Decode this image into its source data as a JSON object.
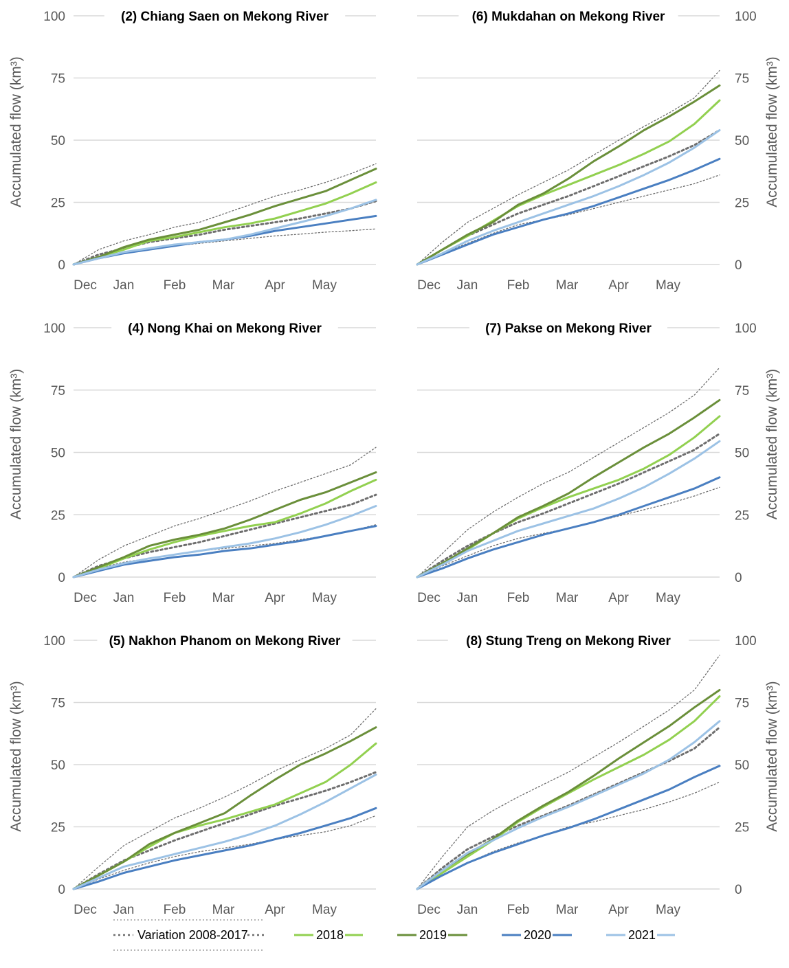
{
  "chart_data": [
    {
      "type": "line",
      "title": "(2) Chiang Saen on Mekong River",
      "ylabel": "Accumulated flow (km³)",
      "ylim": [
        0,
        100
      ],
      "yticks": [
        0,
        25,
        50,
        75,
        100
      ],
      "x_categories": [
        "Dec",
        "Jan",
        "Feb",
        "Mar",
        "Apr",
        "May"
      ],
      "x": [
        0,
        0.5,
        1,
        1.5,
        2,
        2.5,
        3,
        3.5,
        4,
        4.5,
        5,
        5.5,
        6
      ],
      "series": [
        {
          "name": "Variation 2008-2017",
          "role": "max",
          "values": [
            0,
            6,
            9.5,
            12,
            15,
            17,
            20.5,
            24,
            27.5,
            30,
            33,
            36.5,
            40.5
          ]
        },
        {
          "name": "Variation 2008-2017",
          "role": "mean",
          "values": [
            0,
            4,
            6.5,
            9,
            10.5,
            12,
            14,
            15.5,
            17,
            18.5,
            20.5,
            22.5,
            25.5
          ]
        },
        {
          "name": "Variation 2008-2017",
          "role": "min",
          "values": [
            0,
            3,
            5,
            6.5,
            7.5,
            8.5,
            9.5,
            10.5,
            11.5,
            12.2,
            13,
            13.6,
            14.3
          ]
        },
        {
          "name": "2018",
          "values": [
            0,
            3,
            6,
            9.5,
            11,
            13,
            15,
            16.5,
            18.5,
            21.5,
            24.5,
            28.5,
            33
          ]
        },
        {
          "name": "2019",
          "values": [
            0,
            3,
            7,
            10,
            12,
            14,
            17,
            20,
            23.5,
            26.5,
            29.5,
            34,
            38.5
          ]
        },
        {
          "name": "2020",
          "values": [
            0,
            2.5,
            4.5,
            6,
            7.5,
            9,
            10,
            11.5,
            13.5,
            15,
            16.5,
            18,
            19.5
          ]
        },
        {
          "name": "2021",
          "values": [
            0,
            2.5,
            5,
            6.5,
            8,
            9,
            10,
            12,
            14.5,
            17,
            19.5,
            22.5,
            26
          ]
        }
      ]
    },
    {
      "type": "line",
      "title": "(6) Mukdahan on Mekong River",
      "ylabel": "Accumulated flow (km³)",
      "ylim": [
        0,
        100
      ],
      "yticks": [
        0,
        25,
        50,
        75,
        100
      ],
      "x_categories": [
        "Dec",
        "Jan",
        "Feb",
        "Mar",
        "Apr",
        "May"
      ],
      "x": [
        0,
        0.5,
        1,
        1.5,
        2,
        2.5,
        3,
        3.5,
        4,
        4.5,
        5,
        5.5,
        6
      ],
      "series": [
        {
          "name": "Variation 2008-2017",
          "role": "max",
          "values": [
            0,
            9,
            17,
            22.5,
            28,
            33,
            38,
            44,
            50,
            55.5,
            61,
            67,
            78
          ]
        },
        {
          "name": "Variation 2008-2017",
          "role": "mean",
          "values": [
            0,
            6,
            11.5,
            16,
            20.5,
            24,
            27.5,
            31.5,
            35.5,
            39.5,
            43.5,
            48,
            54
          ]
        },
        {
          "name": "Variation 2008-2017",
          "role": "min",
          "values": [
            0,
            4.5,
            8.5,
            12.5,
            16,
            18,
            20,
            22.5,
            25,
            27.5,
            30,
            32.5,
            36
          ]
        },
        {
          "name": "2018",
          "values": [
            0,
            6,
            11.5,
            17.5,
            23.5,
            28,
            32,
            36,
            40,
            44.5,
            49.5,
            56.5,
            66
          ]
        },
        {
          "name": "2019",
          "values": [
            0,
            6,
            12,
            17,
            24,
            28.5,
            34.5,
            41.5,
            47.5,
            54,
            59.5,
            65.5,
            72
          ]
        },
        {
          "name": "2020",
          "values": [
            0,
            4,
            8,
            12,
            15,
            18,
            20.5,
            23.5,
            27,
            30.5,
            34,
            38,
            42.5
          ]
        },
        {
          "name": "2021",
          "values": [
            0,
            4.5,
            9.5,
            13.5,
            17,
            20.5,
            24,
            27.5,
            31.5,
            36,
            41,
            47,
            54
          ]
        }
      ]
    },
    {
      "type": "line",
      "title": "(4) Nong Khai on Mekong River",
      "ylabel": "Accumulated flow (km³)",
      "ylim": [
        0,
        100
      ],
      "yticks": [
        0,
        25,
        50,
        75,
        100
      ],
      "x_categories": [
        "Dec",
        "Jan",
        "Feb",
        "Mar",
        "Apr",
        "May"
      ],
      "x": [
        0,
        0.5,
        1,
        1.5,
        2,
        2.5,
        3,
        3.5,
        4,
        4.5,
        5,
        5.5,
        6
      ],
      "series": [
        {
          "name": "Variation 2008-2017",
          "role": "max",
          "values": [
            0,
            7,
            12.5,
            16.5,
            20.5,
            23.5,
            27,
            30.5,
            34.5,
            38,
            41.5,
            45,
            52
          ]
        },
        {
          "name": "Variation 2008-2017",
          "role": "mean",
          "values": [
            0,
            4.5,
            7.5,
            10,
            12,
            14,
            16.5,
            19,
            21.5,
            24,
            26.5,
            29,
            33
          ]
        },
        {
          "name": "Variation 2008-2017",
          "role": "min",
          "values": [
            0,
            3.5,
            6,
            7.5,
            9,
            10.5,
            11.5,
            12.5,
            13.5,
            15,
            16.5,
            18.5,
            21
          ]
        },
        {
          "name": "2018",
          "values": [
            0,
            3.5,
            7.5,
            11,
            14,
            16.5,
            18.5,
            20.5,
            22,
            25.5,
            29.5,
            34.5,
            39
          ]
        },
        {
          "name": "2019",
          "values": [
            0,
            4,
            8,
            12.5,
            15,
            17,
            19.5,
            23,
            27,
            31,
            34,
            38,
            42
          ]
        },
        {
          "name": "2020",
          "values": [
            0,
            2.5,
            5,
            6.5,
            8,
            9,
            10.5,
            11.5,
            13,
            14.5,
            16.5,
            18.5,
            20.5
          ]
        },
        {
          "name": "2021",
          "values": [
            0,
            3,
            5.5,
            7.5,
            9,
            10.5,
            12,
            13.5,
            15.5,
            18,
            21,
            24.5,
            28.5
          ]
        }
      ]
    },
    {
      "type": "line",
      "title": "(7) Pakse on Mekong River",
      "ylabel": "Accumulated flow (km³)",
      "ylim": [
        0,
        100
      ],
      "yticks": [
        0,
        25,
        50,
        75,
        100
      ],
      "x_categories": [
        "Dec",
        "Jan",
        "Feb",
        "Mar",
        "Apr",
        "May"
      ],
      "x": [
        0,
        0.5,
        1,
        1.5,
        2,
        2.5,
        3,
        3.5,
        4,
        4.5,
        5,
        5.5,
        6
      ],
      "series": [
        {
          "name": "Variation 2008-2017",
          "role": "max",
          "values": [
            0,
            9.5,
            19,
            26,
            32,
            37.5,
            42,
            48,
            54,
            60,
            66,
            73,
            84
          ]
        },
        {
          "name": "Variation 2008-2017",
          "role": "mean",
          "values": [
            0,
            6.5,
            12.5,
            17.5,
            22,
            25.5,
            29.5,
            33.5,
            37.5,
            42,
            46.5,
            51,
            57.5
          ]
        },
        {
          "name": "Variation 2008-2017",
          "role": "min",
          "values": [
            0,
            4.5,
            8.5,
            12.5,
            15.5,
            17.5,
            19.5,
            22,
            24.5,
            27,
            29.5,
            32.5,
            36
          ]
        },
        {
          "name": "2018",
          "values": [
            0,
            5.5,
            11,
            17.5,
            23.5,
            28,
            32,
            35.5,
            39,
            43.5,
            49,
            56,
            64.5
          ]
        },
        {
          "name": "2019",
          "values": [
            0,
            5.5,
            11.5,
            17.5,
            24,
            28.5,
            33.5,
            40,
            46,
            52,
            57.5,
            64,
            71
          ]
        },
        {
          "name": "2020",
          "values": [
            0,
            3.5,
            7.5,
            11,
            14,
            17,
            19.5,
            22,
            25,
            28.5,
            32,
            35.5,
            40
          ]
        },
        {
          "name": "2021",
          "values": [
            0,
            5,
            10.5,
            14.5,
            18.5,
            21.5,
            24.5,
            27.5,
            31.5,
            36,
            41.5,
            47.5,
            54.5
          ]
        }
      ]
    },
    {
      "type": "line",
      "title": "(5) Nakhon Phanom on Mekong River",
      "ylabel": "Accumulated flow (km³)",
      "ylim": [
        0,
        100
      ],
      "yticks": [
        0,
        25,
        50,
        75,
        100
      ],
      "x_categories": [
        "Dec",
        "Jan",
        "Feb",
        "Mar",
        "Apr",
        "May"
      ],
      "x": [
        0,
        0.5,
        1,
        1.5,
        2,
        2.5,
        3,
        3.5,
        4,
        4.5,
        5,
        5.5,
        6
      ],
      "series": [
        {
          "name": "Variation 2008-2017",
          "role": "max",
          "values": [
            0,
            9,
            17.5,
            23,
            28.5,
            32.5,
            37,
            42,
            47.5,
            52,
            56.5,
            62,
            72.5
          ]
        },
        {
          "name": "Variation 2008-2017",
          "role": "mean",
          "values": [
            0,
            6,
            11.5,
            15.5,
            19.5,
            23,
            26.5,
            30,
            33.5,
            36.5,
            39.5,
            43,
            47
          ]
        },
        {
          "name": "Variation 2008-2017",
          "role": "min",
          "values": [
            0,
            4,
            7.5,
            10.5,
            13,
            15,
            16.5,
            18,
            20,
            21.5,
            23,
            25.5,
            29.5
          ]
        },
        {
          "name": "2018",
          "values": [
            0,
            5.5,
            11,
            17,
            22.5,
            25.5,
            28,
            31,
            34,
            38.5,
            43,
            50,
            58.5
          ]
        },
        {
          "name": "2019",
          "values": [
            0,
            5.5,
            11,
            18,
            22.5,
            26.5,
            30.5,
            37.5,
            44,
            50,
            54.5,
            59.5,
            65
          ]
        },
        {
          "name": "2020",
          "values": [
            0,
            3,
            6.5,
            9,
            11.5,
            13.5,
            15.5,
            17.5,
            20,
            22.5,
            25.5,
            28.5,
            32.5
          ]
        },
        {
          "name": "2021",
          "values": [
            0,
            4.5,
            9,
            11.5,
            14,
            16.5,
            19,
            22,
            25.5,
            30,
            35,
            40.5,
            46
          ]
        }
      ]
    },
    {
      "type": "line",
      "title": "(8) Stung Treng on Mekong River",
      "ylabel": "Accumulated flow (km³)",
      "ylim": [
        0,
        100
      ],
      "yticks": [
        0,
        25,
        50,
        75,
        100
      ],
      "x_categories": [
        "Dec",
        "Jan",
        "Feb",
        "Mar",
        "Apr",
        "May"
      ],
      "x": [
        0,
        0.5,
        1,
        1.5,
        2,
        2.5,
        3,
        3.5,
        4,
        4.5,
        5,
        5.5,
        6
      ],
      "series": [
        {
          "name": "Variation 2008-2017",
          "role": "max",
          "values": [
            0,
            13,
            25,
            31.5,
            37,
            42,
            47,
            53,
            59,
            65.5,
            72,
            80,
            94
          ]
        },
        {
          "name": "Variation 2008-2017",
          "role": "mean",
          "values": [
            0,
            8.5,
            16,
            21,
            25.5,
            29.5,
            33.5,
            38,
            42.5,
            47,
            51.5,
            56.5,
            65
          ]
        },
        {
          "name": "Variation 2008-2017",
          "role": "min",
          "values": [
            0,
            5.5,
            10.5,
            15,
            18.5,
            21.5,
            25,
            27,
            29.5,
            32,
            35,
            38.5,
            43
          ]
        },
        {
          "name": "2018",
          "values": [
            0,
            6.5,
            13,
            19.5,
            27,
            33,
            38.5,
            44,
            49,
            54,
            60,
            67.5,
            77.5
          ]
        },
        {
          "name": "2019",
          "values": [
            0,
            7.5,
            14,
            20,
            27.5,
            33.5,
            39,
            45.5,
            52.5,
            59,
            65.5,
            73,
            80
          ]
        },
        {
          "name": "2020",
          "values": [
            0,
            5.5,
            10.5,
            14.5,
            18,
            21.5,
            24.5,
            28,
            32,
            36,
            40,
            45,
            49.5
          ]
        },
        {
          "name": "2021",
          "values": [
            0,
            7.5,
            14.5,
            19.5,
            24.5,
            29,
            33,
            37.5,
            42,
            46.5,
            52,
            59,
            67.5
          ]
        }
      ]
    }
  ],
  "legend": {
    "items": [
      {
        "label": "Variation 2008-2017",
        "color": "#6e6e6e",
        "style": "dotted"
      },
      {
        "label": "2018",
        "color": "#92d050",
        "style": "solid"
      },
      {
        "label": "2019",
        "color": "#6a8f3a",
        "style": "solid"
      },
      {
        "label": "2020",
        "color": "#4a7fc1",
        "style": "solid"
      },
      {
        "label": "2021",
        "color": "#9cc2e5",
        "style": "solid"
      }
    ]
  },
  "colors": {
    "variation": "#6e6e6e",
    "y2018": "#92d050",
    "y2019": "#6a8f3a",
    "y2020": "#4a7fc1",
    "y2021": "#9cc2e5",
    "grid": "#d9d9d9"
  }
}
